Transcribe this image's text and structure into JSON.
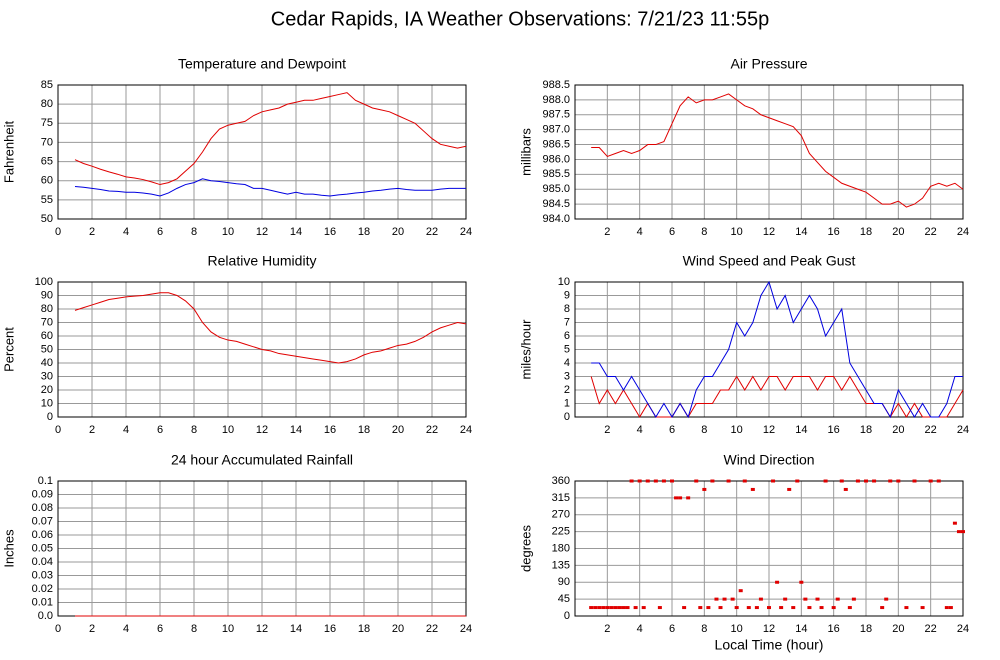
{
  "title": "Cedar Rapids, IA Weather Observations: 7/21/23 11:55p",
  "chart_data": [
    {
      "type": "line",
      "title": "Temperature and Dewpoint",
      "ylabel": "Fahrenheit",
      "xlim": [
        0,
        24
      ],
      "xticks": [
        0,
        2,
        4,
        6,
        8,
        10,
        12,
        14,
        16,
        18,
        20,
        22,
        24
      ],
      "ylim": [
        50,
        85
      ],
      "yticks": [
        50,
        55,
        60,
        65,
        70,
        75,
        80,
        85
      ],
      "grid": true,
      "x": [
        1,
        1.5,
        2,
        2.5,
        3,
        3.5,
        4,
        4.5,
        5,
        5.5,
        6,
        6.5,
        7,
        7.5,
        8,
        8.5,
        9,
        9.5,
        10,
        10.5,
        11,
        11.5,
        12,
        12.5,
        13,
        13.5,
        14,
        14.5,
        15,
        15.5,
        16,
        16.5,
        17,
        17.5,
        18,
        18.5,
        19,
        19.5,
        20,
        20.5,
        21,
        21.5,
        22,
        22.5,
        23,
        23.5,
        24
      ],
      "series": [
        {
          "color": "#e00000",
          "values": [
            65.5,
            64.5,
            63.8,
            63,
            62.3,
            61.7,
            61,
            60.7,
            60.3,
            59.7,
            59,
            59.5,
            60.5,
            62.5,
            64.5,
            67.5,
            71,
            73.5,
            74.5,
            75,
            75.5,
            77,
            78,
            78.5,
            79,
            80,
            80.5,
            81,
            81,
            81.5,
            82,
            82.5,
            83,
            81,
            80,
            79,
            78.5,
            78,
            77,
            76,
            75,
            73,
            71,
            69.5,
            69,
            68.5,
            69
          ]
        },
        {
          "color": "#0000e0",
          "values": [
            58.5,
            58.3,
            58,
            57.7,
            57.3,
            57.2,
            57,
            57,
            56.8,
            56.5,
            56,
            56.8,
            58,
            59,
            59.5,
            60.5,
            60,
            59.8,
            59.5,
            59.2,
            59,
            58,
            58,
            57.5,
            57,
            56.5,
            57,
            56.5,
            56.5,
            56.2,
            56,
            56.3,
            56.5,
            56.8,
            57,
            57.3,
            57.5,
            57.8,
            58,
            57.7,
            57.5,
            57.5,
            57.5,
            57.8,
            58,
            58,
            58
          ]
        }
      ]
    },
    {
      "type": "line",
      "title": "Air Pressure",
      "ylabel": "millibars",
      "xlim": [
        0,
        24
      ],
      "xticks": [
        2,
        4,
        6,
        8,
        10,
        12,
        14,
        16,
        18,
        20,
        22,
        24
      ],
      "ylim": [
        984,
        988.5
      ],
      "yticks": [
        {
          "value": 984,
          "label": "984.0"
        },
        984.5,
        {
          "value": 985,
          "label": "985.0"
        },
        985.5,
        {
          "value": 986,
          "label": "986.0"
        },
        986.5,
        {
          "value": 987,
          "label": "987.0"
        },
        987.5,
        {
          "value": 988,
          "label": "988.0"
        },
        988.5
      ],
      "grid": true,
      "x": [
        1,
        1.5,
        2,
        2.5,
        3,
        3.5,
        4,
        4.5,
        5,
        5.5,
        6,
        6.5,
        7,
        7.5,
        8,
        8.5,
        9,
        9.5,
        10,
        10.5,
        11,
        11.5,
        12,
        12.5,
        13,
        13.5,
        14,
        14.5,
        15,
        15.5,
        16,
        16.5,
        17,
        17.5,
        18,
        18.5,
        19,
        19.5,
        20,
        20.5,
        21,
        21.5,
        22,
        22.5,
        23,
        23.5,
        24
      ],
      "series": [
        {
          "color": "#e00000",
          "values": [
            986.4,
            986.4,
            986.1,
            986.2,
            986.3,
            986.2,
            986.3,
            986.5,
            986.5,
            986.6,
            987.2,
            987.8,
            988.1,
            987.9,
            988.0,
            988.0,
            988.1,
            988.2,
            988.0,
            987.8,
            987.7,
            987.5,
            987.4,
            987.3,
            987.2,
            987.1,
            986.8,
            986.2,
            985.9,
            985.6,
            985.4,
            985.2,
            985.1,
            985.0,
            984.9,
            984.7,
            984.5,
            984.5,
            984.6,
            984.4,
            984.5,
            984.7,
            985.1,
            985.2,
            985.1,
            985.2,
            985.0
          ]
        }
      ]
    },
    {
      "type": "line",
      "title": "Relative Humidity",
      "ylabel": "Percent",
      "xlim": [
        0,
        24
      ],
      "xticks": [
        0,
        2,
        4,
        6,
        8,
        10,
        12,
        14,
        16,
        18,
        20,
        22,
        24
      ],
      "ylim": [
        0,
        100
      ],
      "yticks": [
        0,
        10,
        20,
        30,
        40,
        50,
        60,
        70,
        80,
        90,
        100
      ],
      "grid": true,
      "x": [
        1,
        1.5,
        2,
        2.5,
        3,
        3.5,
        4,
        4.5,
        5,
        5.5,
        6,
        6.5,
        7,
        7.5,
        8,
        8.5,
        9,
        9.5,
        10,
        10.5,
        11,
        11.5,
        12,
        12.5,
        13,
        13.5,
        14,
        14.5,
        15,
        15.5,
        16,
        16.5,
        17,
        17.5,
        18,
        18.5,
        19,
        19.5,
        20,
        20.5,
        21,
        21.5,
        22,
        22.5,
        23,
        23.5,
        24
      ],
      "series": [
        {
          "color": "#e00000",
          "values": [
            79,
            81,
            83,
            85,
            87,
            88,
            89,
            89.5,
            90,
            91,
            92,
            92,
            90,
            86,
            80,
            70,
            63,
            59,
            57,
            56,
            54,
            52,
            50,
            49,
            47,
            46,
            45,
            44,
            43,
            42,
            41,
            40,
            41,
            43,
            46,
            48,
            49,
            51,
            53,
            54,
            56,
            59,
            63,
            66,
            68,
            70,
            69
          ]
        }
      ]
    },
    {
      "type": "line",
      "title": "Wind Speed and Peak Gust",
      "ylabel": "miles/hour",
      "xlim": [
        0,
        24
      ],
      "xticks": [
        2,
        4,
        6,
        8,
        10,
        12,
        14,
        16,
        18,
        20,
        22,
        24
      ],
      "ylim": [
        0,
        10
      ],
      "yticks": [
        0,
        1,
        2,
        3,
        4,
        5,
        6,
        7,
        8,
        9,
        10
      ],
      "grid": true,
      "x": [
        1,
        1.5,
        2,
        2.5,
        3,
        3.5,
        4,
        4.5,
        5,
        5.5,
        6,
        6.5,
        7,
        7.5,
        8,
        8.5,
        9,
        9.5,
        10,
        10.5,
        11,
        11.5,
        12,
        12.5,
        13,
        13.5,
        14,
        14.5,
        15,
        15.5,
        16,
        16.5,
        17,
        17.5,
        18,
        18.5,
        19,
        19.5,
        20,
        20.5,
        21,
        21.5,
        22,
        22.5,
        23,
        23.5,
        24
      ],
      "series": [
        {
          "color": "#e00000",
          "values": [
            3,
            1,
            2,
            1,
            2,
            1,
            0,
            1,
            0,
            0,
            0,
            1,
            0,
            1,
            1,
            1,
            2,
            2,
            3,
            2,
            3,
            2,
            3,
            3,
            2,
            3,
            3,
            3,
            2,
            3,
            3,
            2,
            3,
            2,
            1,
            1,
            1,
            0,
            1,
            0,
            1,
            0,
            0,
            0,
            0,
            1,
            2
          ]
        },
        {
          "color": "#0000e0",
          "values": [
            4,
            4,
            3,
            3,
            2,
            3,
            2,
            1,
            0,
            1,
            0,
            1,
            0,
            2,
            3,
            3,
            4,
            5,
            7,
            6,
            7,
            9,
            10,
            8,
            9,
            7,
            8,
            9,
            8,
            6,
            7,
            8,
            4,
            3,
            2,
            1,
            1,
            0,
            2,
            1,
            0,
            1,
            0,
            0,
            1,
            3,
            3
          ]
        }
      ]
    },
    {
      "type": "line",
      "title": "24 hour Accumulated Rainfall",
      "ylabel": "Inches",
      "xlim": [
        0,
        24
      ],
      "xticks": [
        0,
        2,
        4,
        6,
        8,
        10,
        12,
        14,
        16,
        18,
        20,
        22,
        24
      ],
      "ylim": [
        0,
        0.1
      ],
      "yticks": [
        {
          "value": 0,
          "label": "0.0"
        },
        0.01,
        0.02,
        0.03,
        0.04,
        0.05,
        0.06,
        0.07,
        0.08,
        0.09,
        0.1
      ],
      "grid": true,
      "x": [
        1,
        24
      ],
      "series": [
        {
          "color": "#e00000",
          "values": [
            0,
            0
          ]
        }
      ]
    },
    {
      "type": "scatter",
      "title": "Wind Direction",
      "ylabel": "degrees",
      "xlabel": "Local Time (hour)",
      "xlim": [
        0,
        24
      ],
      "xticks": [
        2,
        4,
        6,
        8,
        10,
        12,
        14,
        16,
        18,
        20,
        22,
        24
      ],
      "ylim": [
        0,
        360
      ],
      "yticks": [
        0,
        45,
        90,
        135,
        180,
        225,
        270,
        315,
        360
      ],
      "grid": true,
      "color": "#e00000",
      "x": [
        1,
        1.25,
        1.5,
        1.75,
        2,
        2.25,
        2.5,
        2.75,
        3,
        3.25,
        3.5,
        3.75,
        4,
        4.25,
        4.5,
        5,
        5.25,
        5.5,
        6,
        6.25,
        6.5,
        6.75,
        7,
        7.5,
        7.75,
        8,
        8.25,
        8.5,
        8.75,
        9,
        9.25,
        9.5,
        9.75,
        10,
        10.25,
        10.5,
        10.75,
        11,
        11.25,
        11.5,
        12,
        12.25,
        12.5,
        12.75,
        13,
        13.25,
        13.5,
        13.75,
        14,
        14.25,
        14.5,
        15,
        15.25,
        15.5,
        16,
        16.25,
        16.5,
        16.75,
        17,
        17.25,
        17.5,
        18,
        18.5,
        19,
        19.25,
        19.5,
        20,
        20.5,
        21,
        21.5,
        22,
        22.5,
        23,
        23.25,
        23.5,
        23.75,
        24
      ],
      "values": [
        22.5,
        22.5,
        22.5,
        22.5,
        22.5,
        22.5,
        22.5,
        22.5,
        22.5,
        22.5,
        360,
        22.5,
        360,
        22.5,
        360,
        360,
        22.5,
        360,
        360,
        315,
        315,
        22.5,
        315,
        360,
        22.5,
        337.5,
        22.5,
        360,
        45,
        22.5,
        45,
        360,
        45,
        22.5,
        67.5,
        360,
        22.5,
        337.5,
        22.5,
        45,
        22.5,
        360,
        90,
        22.5,
        45,
        337.5,
        22.5,
        360,
        90,
        45,
        22.5,
        45,
        22.5,
        360,
        22.5,
        45,
        360,
        337.5,
        22.5,
        45,
        360,
        360,
        360,
        22.5,
        45,
        360,
        360,
        22.5,
        360,
        22.5,
        360,
        360,
        22.5,
        22.5,
        247.5,
        225,
        225
      ]
    }
  ]
}
